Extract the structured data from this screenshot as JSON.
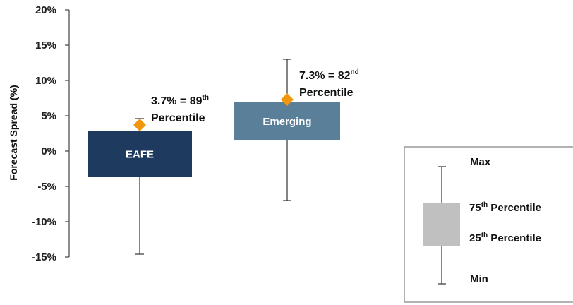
{
  "chart_data": {
    "type": "box",
    "ylabel": "Forecast Spread (%)",
    "ylim": [
      -15,
      20
    ],
    "yticks": [
      "20%",
      "15%",
      "10%",
      "5%",
      "0%",
      "-5%",
      "-10%",
      "-15%"
    ],
    "categories": [
      "EAFE",
      "Emerging"
    ],
    "boxes": [
      {
        "name": "EAFE",
        "min": -14.6,
        "q1": -3.7,
        "q3": 2.8,
        "max": 4.6,
        "current": 3.7,
        "color": "#1f3a5f",
        "annotation": {
          "line1_main": "3.7% = 89",
          "line1_sup": "th",
          "line2": "Percentile"
        }
      },
      {
        "name": "Emerging",
        "min": -7.0,
        "q1": 1.5,
        "q3": 6.9,
        "max": 13.0,
        "current": 7.3,
        "color": "#5a7f99",
        "annotation": {
          "line1_main": "7.3% = 82",
          "line1_sup": "nd",
          "line2": "Percentile"
        }
      }
    ],
    "marker_color": "#f0960f",
    "legend": {
      "max": "Max",
      "p75_num": "75",
      "p75_sup": "th",
      "p75_text": " Percentile",
      "p25_num": "25",
      "p25_sup": "th",
      "p25_text": " Percentile",
      "min": "Min"
    }
  }
}
